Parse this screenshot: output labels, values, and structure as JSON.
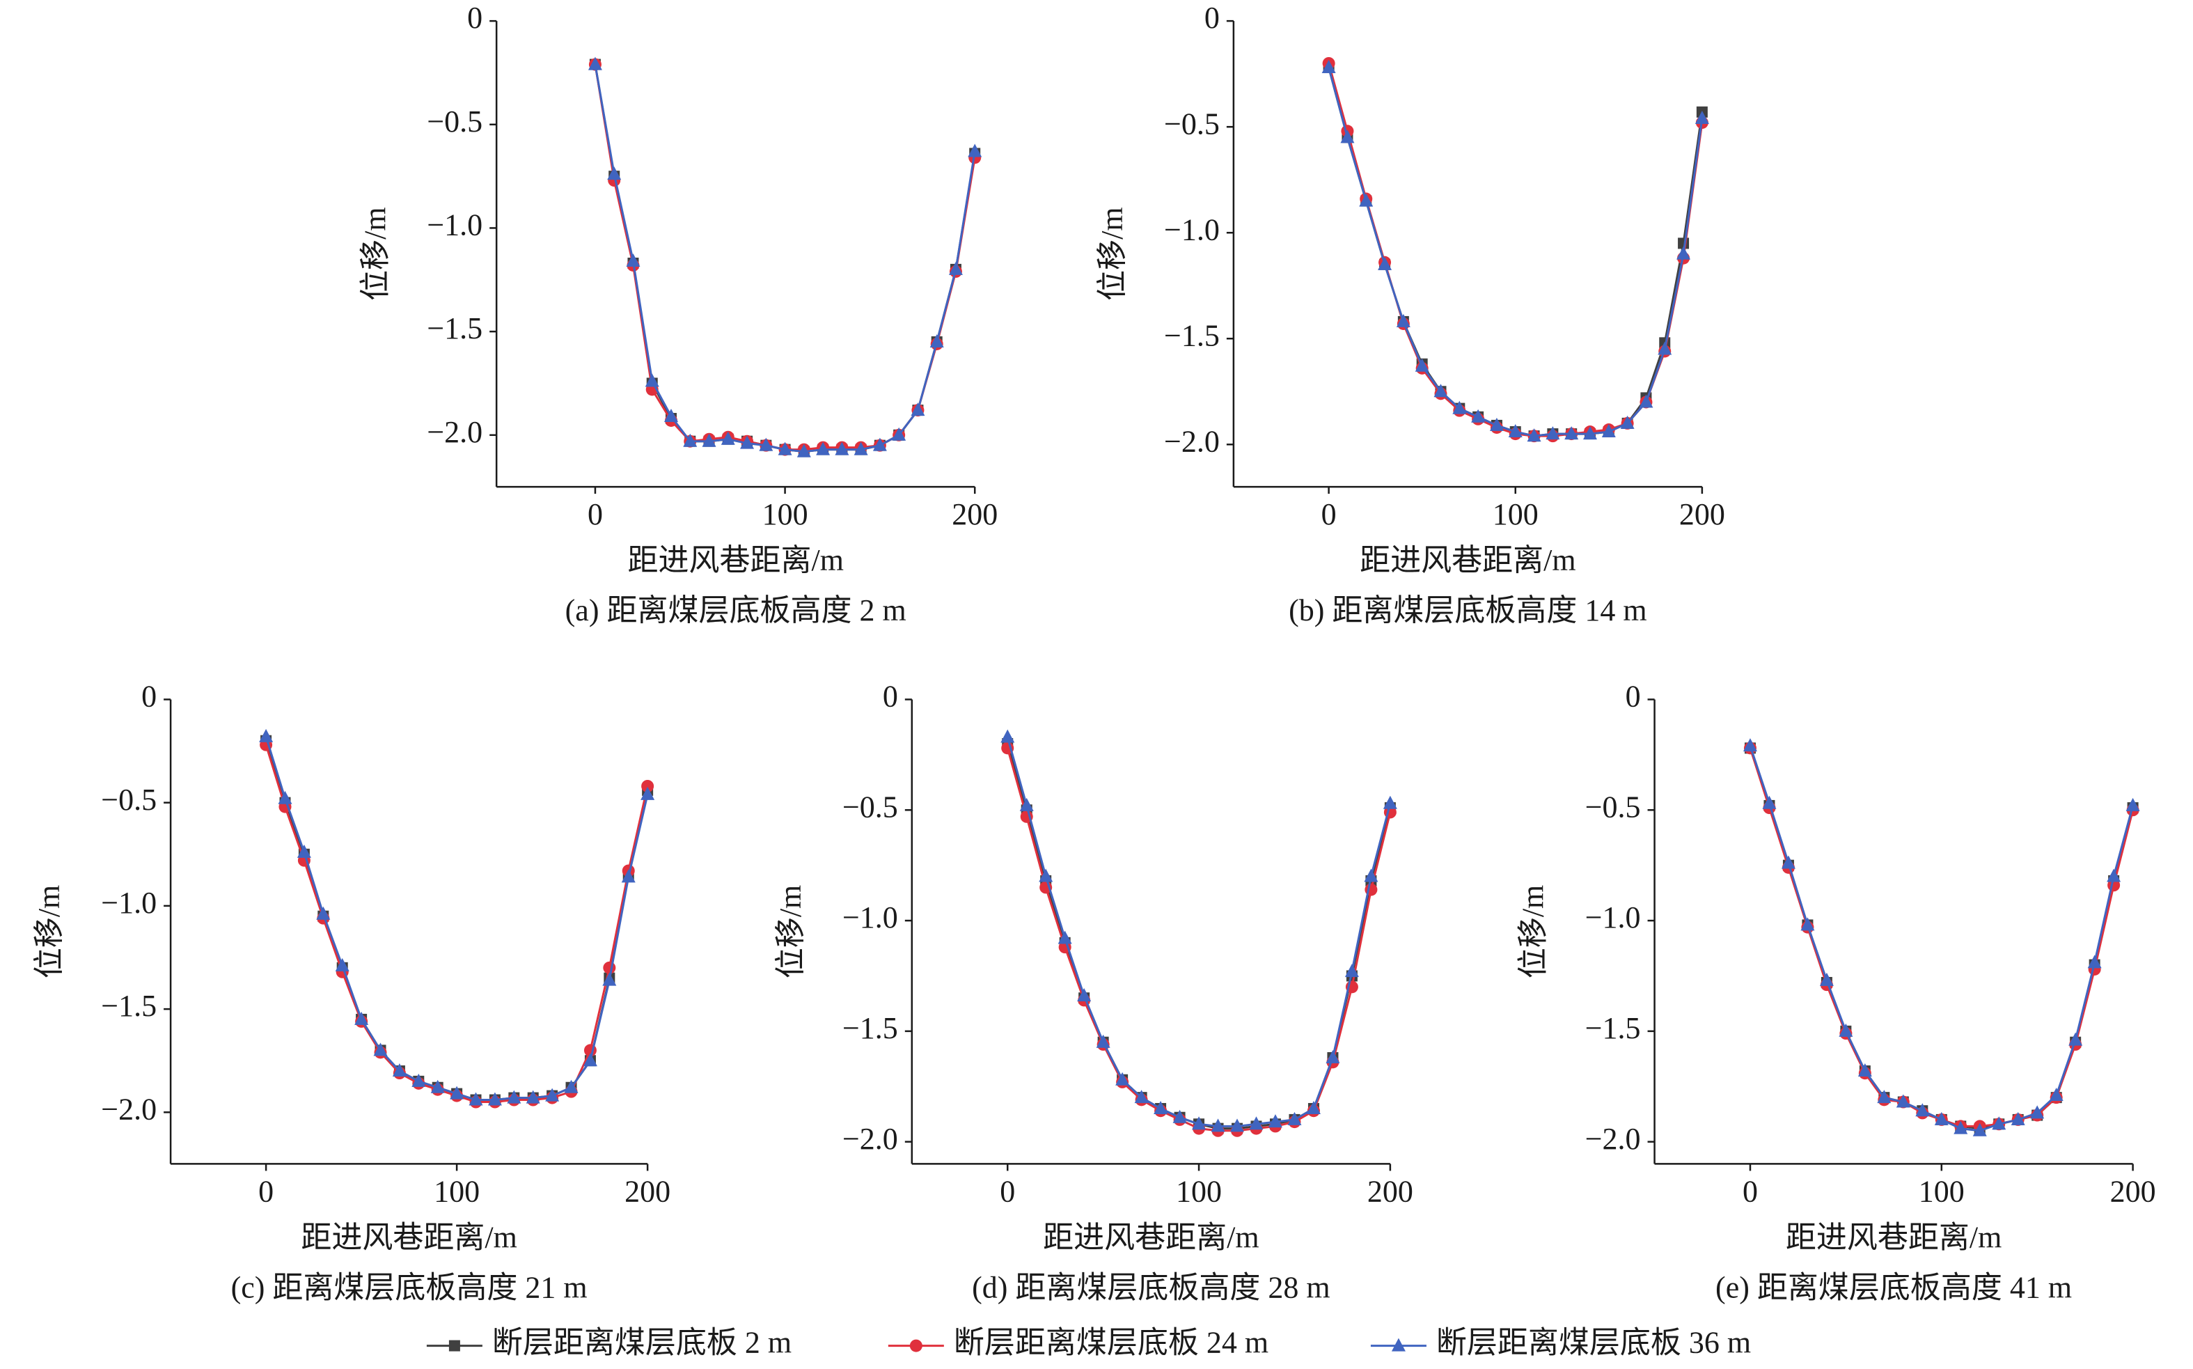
{
  "chart_data": [
    {
      "type": "line",
      "caption": "(a) 距离煤层底板高度 2 m",
      "xlabel": "距进风巷距离/m",
      "ylabel": "位移/m",
      "x": [
        0,
        10,
        20,
        30,
        40,
        50,
        60,
        70,
        80,
        90,
        100,
        110,
        120,
        130,
        140,
        150,
        160,
        170,
        180,
        190,
        200
      ],
      "xlim": [
        -52,
        200
      ],
      "ylim": [
        -2.25,
        0
      ],
      "xticks": [
        0,
        100,
        200
      ],
      "yticks": [
        0,
        {
          "value": -0.5,
          "label": "−0.5"
        },
        {
          "value": -1,
          "label": "−1.0"
        },
        {
          "value": -1.5,
          "label": "−1.5"
        },
        {
          "value": -2,
          "label": "−2.0"
        }
      ],
      "series": [
        {
          "name": "断层距离煤层底板 2 m",
          "color": "#404040",
          "marker": "square",
          "values": [
            -0.21,
            -0.75,
            -1.17,
            -1.75,
            -1.92,
            -2.03,
            -2.03,
            -2.02,
            -2.03,
            -2.05,
            -2.07,
            -2.08,
            -2.07,
            -2.07,
            -2.07,
            -2.05,
            -2.0,
            -1.88,
            -1.55,
            -1.2,
            -0.64
          ]
        },
        {
          "name": "断层距离煤层底板 24 m",
          "color": "#e0303c",
          "marker": "circle",
          "values": [
            -0.21,
            -0.77,
            -1.18,
            -1.78,
            -1.93,
            -2.03,
            -2.02,
            -2.01,
            -2.03,
            -2.05,
            -2.07,
            -2.07,
            -2.06,
            -2.06,
            -2.06,
            -2.05,
            -2.0,
            -1.88,
            -1.56,
            -1.21,
            -0.66
          ]
        },
        {
          "name": "断层距离煤层底板 36 m",
          "color": "#4064c0",
          "marker": "triangle",
          "values": [
            -0.21,
            -0.74,
            -1.16,
            -1.74,
            -1.91,
            -2.03,
            -2.03,
            -2.02,
            -2.04,
            -2.05,
            -2.07,
            -2.08,
            -2.07,
            -2.07,
            -2.07,
            -2.05,
            -2.0,
            -1.88,
            -1.55,
            -1.2,
            -0.63
          ]
        }
      ]
    },
    {
      "type": "line",
      "caption": "(b) 距离煤层底板高度 14 m",
      "xlabel": "距进风巷距离/m",
      "ylabel": "位移/m",
      "x": [
        0,
        10,
        20,
        30,
        40,
        50,
        60,
        70,
        80,
        90,
        100,
        110,
        120,
        130,
        140,
        150,
        160,
        170,
        180,
        190,
        200
      ],
      "xlim": [
        -51,
        200
      ],
      "ylim": [
        -2.2,
        0
      ],
      "xticks": [
        0,
        100,
        200
      ],
      "yticks": [
        0,
        {
          "value": -0.5,
          "label": "−0.5"
        },
        {
          "value": -1,
          "label": "−1.0"
        },
        {
          "value": -1.5,
          "label": "−1.5"
        },
        {
          "value": -2,
          "label": "−2.0"
        }
      ],
      "series": [
        {
          "name": "断层距离煤层底板 2 m",
          "color": "#404040",
          "marker": "square",
          "values": [
            -0.22,
            -0.55,
            -0.85,
            -1.15,
            -1.42,
            -1.62,
            -1.75,
            -1.83,
            -1.87,
            -1.91,
            -1.94,
            -1.96,
            -1.95,
            -1.95,
            -1.95,
            -1.94,
            -1.9,
            -1.78,
            -1.52,
            -1.05,
            -0.43
          ]
        },
        {
          "name": "断层距离煤层底板 24 m",
          "color": "#e0303c",
          "marker": "circle",
          "values": [
            -0.2,
            -0.52,
            -0.84,
            -1.14,
            -1.43,
            -1.64,
            -1.76,
            -1.84,
            -1.88,
            -1.92,
            -1.95,
            -1.96,
            -1.96,
            -1.95,
            -1.94,
            -1.93,
            -1.9,
            -1.8,
            -1.56,
            -1.12,
            -0.48
          ]
        },
        {
          "name": "断层距离煤层底板 36 m",
          "color": "#4064c0",
          "marker": "triangle",
          "values": [
            -0.22,
            -0.55,
            -0.85,
            -1.15,
            -1.42,
            -1.63,
            -1.75,
            -1.83,
            -1.87,
            -1.91,
            -1.94,
            -1.96,
            -1.95,
            -1.95,
            -1.95,
            -1.94,
            -1.9,
            -1.8,
            -1.55,
            -1.1,
            -0.46
          ]
        }
      ]
    },
    {
      "type": "line",
      "caption": "(c) 距离煤层底板高度 21 m",
      "xlabel": "距进风巷距离/m",
      "ylabel": "位移/m",
      "x": [
        0,
        10,
        20,
        30,
        40,
        50,
        60,
        70,
        80,
        90,
        100,
        110,
        120,
        130,
        140,
        150,
        160,
        170,
        180,
        190,
        200
      ],
      "xlim": [
        -50,
        200
      ],
      "ylim": [
        -2.25,
        0
      ],
      "xticks": [
        0,
        100,
        200
      ],
      "yticks": [
        0,
        {
          "value": -0.5,
          "label": "−0.5"
        },
        {
          "value": -1,
          "label": "−1.0"
        },
        {
          "value": -1.5,
          "label": "−1.5"
        },
        {
          "value": -2,
          "label": "−2.0"
        }
      ],
      "series": [
        {
          "name": "断层距离煤层底板 2 m",
          "color": "#404040",
          "marker": "square",
          "values": [
            -0.2,
            -0.5,
            -0.75,
            -1.05,
            -1.3,
            -1.55,
            -1.7,
            -1.8,
            -1.85,
            -1.88,
            -1.91,
            -1.94,
            -1.94,
            -1.93,
            -1.93,
            -1.92,
            -1.88,
            -1.75,
            -1.35,
            -0.85,
            -0.44
          ]
        },
        {
          "name": "断层距离煤层底板 24 m",
          "color": "#e0303c",
          "marker": "circle",
          "values": [
            -0.22,
            -0.52,
            -0.78,
            -1.06,
            -1.32,
            -1.56,
            -1.71,
            -1.81,
            -1.86,
            -1.89,
            -1.92,
            -1.95,
            -1.95,
            -1.94,
            -1.94,
            -1.93,
            -1.9,
            -1.7,
            -1.3,
            -0.83,
            -0.42
          ]
        },
        {
          "name": "断层距离煤层底板 36 m",
          "color": "#4064c0",
          "marker": "triangle",
          "values": [
            -0.18,
            -0.48,
            -0.74,
            -1.04,
            -1.29,
            -1.55,
            -1.7,
            -1.8,
            -1.85,
            -1.88,
            -1.91,
            -1.94,
            -1.94,
            -1.93,
            -1.93,
            -1.92,
            -1.88,
            -1.75,
            -1.36,
            -0.86,
            -0.46
          ]
        }
      ]
    },
    {
      "type": "line",
      "caption": "(d) 距离煤层底板高度 28 m",
      "xlabel": "距进风巷距离/m",
      "ylabel": "位移/m",
      "x": [
        0,
        10,
        20,
        30,
        40,
        50,
        60,
        70,
        80,
        90,
        100,
        110,
        120,
        130,
        140,
        150,
        160,
        170,
        180,
        190,
        200
      ],
      "xlim": [
        -50,
        200
      ],
      "ylim": [
        -2.1,
        0
      ],
      "xticks": [
        0,
        100,
        200
      ],
      "yticks": [
        0,
        {
          "value": -0.5,
          "label": "−0.5"
        },
        {
          "value": -1,
          "label": "−1.0"
        },
        {
          "value": -1.5,
          "label": "−1.5"
        },
        {
          "value": -2,
          "label": "−2.0"
        }
      ],
      "series": [
        {
          "name": "断层距离煤层底板 2 m",
          "color": "#404040",
          "marker": "square",
          "values": [
            -0.2,
            -0.5,
            -0.82,
            -1.1,
            -1.35,
            -1.55,
            -1.72,
            -1.8,
            -1.85,
            -1.89,
            -1.92,
            -1.94,
            -1.94,
            -1.93,
            -1.92,
            -1.9,
            -1.85,
            -1.62,
            -1.25,
            -0.82,
            -0.49
          ]
        },
        {
          "name": "断层距离煤层底板 24 m",
          "color": "#e0303c",
          "marker": "circle",
          "values": [
            -0.22,
            -0.53,
            -0.85,
            -1.12,
            -1.36,
            -1.56,
            -1.73,
            -1.81,
            -1.86,
            -1.9,
            -1.94,
            -1.95,
            -1.95,
            -1.94,
            -1.93,
            -1.91,
            -1.86,
            -1.64,
            -1.3,
            -0.86,
            -0.51
          ]
        },
        {
          "name": "断层距离煤层底板 36 m",
          "color": "#4064c0",
          "marker": "triangle",
          "values": [
            -0.17,
            -0.48,
            -0.8,
            -1.08,
            -1.34,
            -1.55,
            -1.72,
            -1.8,
            -1.85,
            -1.89,
            -1.92,
            -1.93,
            -1.93,
            -1.92,
            -1.91,
            -1.9,
            -1.85,
            -1.62,
            -1.23,
            -0.8,
            -0.47
          ]
        }
      ]
    },
    {
      "type": "line",
      "caption": "(e) 距离煤层底板高度 41 m",
      "xlabel": "距进风巷距离/m",
      "ylabel": "位移/m",
      "x": [
        0,
        10,
        20,
        30,
        40,
        50,
        60,
        70,
        80,
        90,
        100,
        110,
        120,
        130,
        140,
        150,
        160,
        170,
        180,
        190,
        200
      ],
      "xlim": [
        -50,
        200
      ],
      "ylim": [
        -2.1,
        0
      ],
      "xticks": [
        0,
        100,
        200
      ],
      "yticks": [
        0,
        {
          "value": -0.5,
          "label": "−0.5"
        },
        {
          "value": -1,
          "label": "−1.0"
        },
        {
          "value": -1.5,
          "label": "−1.5"
        },
        {
          "value": -2,
          "label": "−2.0"
        }
      ],
      "series": [
        {
          "name": "断层距离煤层底板 2 m",
          "color": "#404040",
          "marker": "square",
          "values": [
            -0.22,
            -0.48,
            -0.75,
            -1.02,
            -1.28,
            -1.5,
            -1.68,
            -1.8,
            -1.82,
            -1.86,
            -1.9,
            -1.93,
            -1.94,
            -1.92,
            -1.9,
            -1.88,
            -1.8,
            -1.55,
            -1.2,
            -0.82,
            -0.49
          ]
        },
        {
          "name": "断层距离煤层底板 24 m",
          "color": "#e0303c",
          "marker": "circle",
          "values": [
            -0.22,
            -0.49,
            -0.76,
            -1.03,
            -1.29,
            -1.51,
            -1.69,
            -1.81,
            -1.82,
            -1.87,
            -1.9,
            -1.93,
            -1.93,
            -1.92,
            -1.9,
            -1.88,
            -1.8,
            -1.56,
            -1.22,
            -0.84,
            -0.5
          ]
        },
        {
          "name": "断层距离煤层底板 36 m",
          "color": "#4064c0",
          "marker": "triangle",
          "values": [
            -0.21,
            -0.47,
            -0.74,
            -1.02,
            -1.27,
            -1.5,
            -1.68,
            -1.8,
            -1.82,
            -1.86,
            -1.9,
            -1.94,
            -1.95,
            -1.92,
            -1.9,
            -1.87,
            -1.79,
            -1.54,
            -1.19,
            -0.8,
            -0.48
          ]
        }
      ]
    }
  ]
}
